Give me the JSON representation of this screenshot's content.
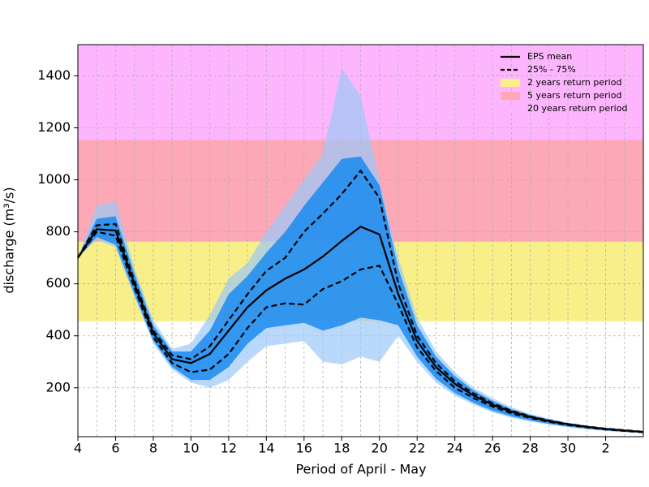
{
  "chart_data": {
    "type": "line",
    "xlabel": "Period of April - May",
    "ylabel": "discharge (m³/s)",
    "categories": [
      "4",
      null,
      "6",
      null,
      "8",
      null,
      "10",
      null,
      "12",
      null,
      "14",
      null,
      "16",
      null,
      "18",
      null,
      "20",
      null,
      "22",
      null,
      "24",
      null,
      "26",
      null,
      "28",
      null,
      "30",
      null,
      "2",
      null,
      null
    ],
    "ylim": [
      12,
      1520
    ],
    "yticks": [
      200,
      400,
      600,
      800,
      1000,
      1200,
      1400
    ],
    "grid": true,
    "legend": "upper right",
    "return_periods": [
      {
        "name": "2 years return period",
        "color": "#f8ef88",
        "from": 456,
        "to": 762
      },
      {
        "name": "5 years return period",
        "color": "#fca8b6",
        "from": 762,
        "to": 1153
      },
      {
        "name": "20 years return period",
        "color": "#fdb6fd",
        "from": 1153
      }
    ],
    "ensemble_bands": [
      {
        "color": "#9cc8f8",
        "lower": [
          700,
          770,
          740,
          550,
          370,
          270,
          220,
          200,
          230,
          300,
          360,
          370,
          380,
          300,
          290,
          320,
          300,
          400,
          300,
          220,
          170,
          135,
          105,
          85,
          70,
          58,
          48,
          40,
          34,
          29,
          26
        ],
        "upper": [
          700,
          900,
          920,
          660,
          460,
          350,
          370,
          480,
          620,
          680,
          800,
          900,
          1000,
          1100,
          1430,
          1320,
          1000,
          700,
          470,
          340,
          260,
          200,
          160,
          125,
          100,
          82,
          66,
          55,
          45,
          38,
          32
        ]
      },
      {
        "color": "#1a8cf0",
        "lower": [
          700,
          780,
          750,
          560,
          380,
          280,
          230,
          230,
          280,
          370,
          430,
          440,
          450,
          420,
          440,
          470,
          460,
          440,
          320,
          235,
          180,
          142,
          112,
          90,
          74,
          61,
          51,
          43,
          36,
          31,
          27
        ],
        "upper": [
          700,
          850,
          860,
          640,
          440,
          340,
          340,
          420,
          560,
          630,
          720,
          800,
          900,
          990,
          1080,
          1090,
          980,
          660,
          440,
          320,
          245,
          190,
          150,
          118,
          95,
          78,
          63,
          53,
          44,
          37,
          31
        ]
      }
    ],
    "series": [
      {
        "name": "EPS mean",
        "color": "#000000",
        "values": [
          700,
          810,
          805,
          600,
          410,
          310,
          295,
          330,
          420,
          510,
          575,
          620,
          655,
          705,
          765,
          820,
          790,
          560,
          380,
          280,
          215,
          170,
          135,
          108,
          88,
          72,
          60,
          50,
          42,
          36,
          30
        ]
      }
    ],
    "quartiles": {
      "name": "25% - 75%",
      "color": "#000000",
      "lower": [
        700,
        800,
        785,
        585,
        395,
        295,
        260,
        270,
        330,
        430,
        510,
        525,
        520,
        580,
        610,
        655,
        670,
        520,
        355,
        265,
        200,
        160,
        128,
        102,
        84,
        69,
        57,
        48,
        40,
        34,
        29
      ],
      "upper": [
        700,
        825,
        830,
        610,
        420,
        325,
        310,
        360,
        460,
        560,
        650,
        700,
        800,
        870,
        945,
        1035,
        930,
        600,
        400,
        295,
        225,
        178,
        140,
        112,
        90,
        74,
        61,
        51,
        43,
        37,
        31
      ]
    }
  }
}
